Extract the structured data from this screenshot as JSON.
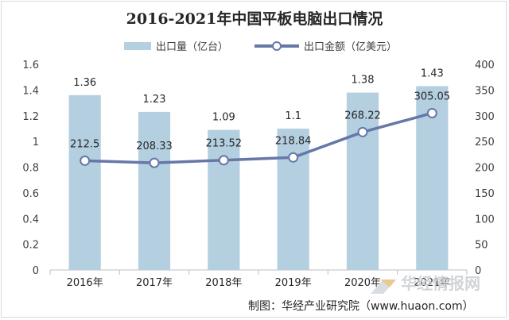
{
  "chart_data": {
    "type": "bar",
    "title": "2016-2021年中国平板电脑出口情况",
    "categories": [
      "2016年",
      "2017年",
      "2018年",
      "2019年",
      "2020年",
      "2021年"
    ],
    "series": [
      {
        "name": "出口量（亿台）",
        "type": "bar",
        "axis": "left",
        "values": [
          1.36,
          1.23,
          1.09,
          1.1,
          1.38,
          1.43
        ],
        "labels": [
          "1.36",
          "1.23",
          "1.09",
          "1.1",
          "1.38",
          "1.43"
        ],
        "color": "#b4cfe0"
      },
      {
        "name": "出口金额（亿美元）",
        "type": "line",
        "axis": "right",
        "values": [
          212.5,
          208.33,
          213.52,
          218.84,
          268.22,
          305.05
        ],
        "labels": [
          "212.5",
          "208.33",
          "213.52",
          "218.84",
          "268.22",
          "305.05"
        ],
        "color": "#6677a8"
      }
    ],
    "y_left": {
      "range": [
        0,
        1.6
      ],
      "ticks": [
        "0",
        "0.2",
        "0.4",
        "0.6",
        "0.8",
        "1",
        "1.2",
        "1.4",
        "1.6"
      ]
    },
    "y_right": {
      "range": [
        0,
        400
      ],
      "ticks": [
        "0",
        "50",
        "100",
        "150",
        "200",
        "250",
        "300",
        "350",
        "400"
      ]
    },
    "legend_position": "top-center",
    "grid": false
  },
  "credit": "制图：华经产业研究院（www.huaon.com）",
  "watermark": "华经情报网"
}
